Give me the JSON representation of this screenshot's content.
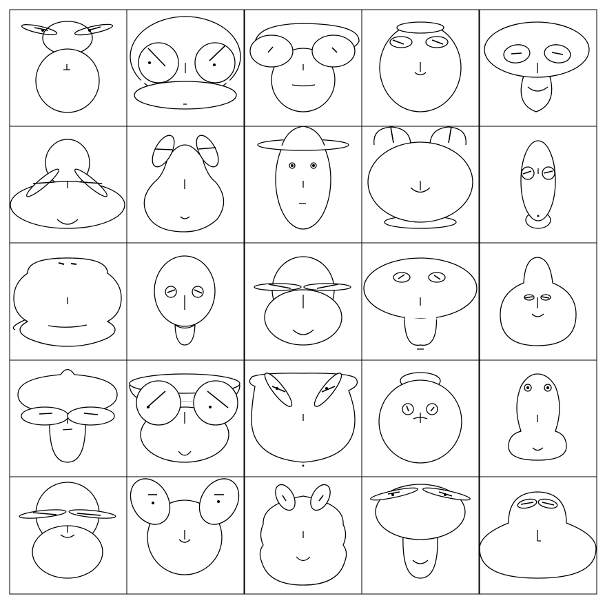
{
  "figure": {
    "type": "chernoff-faces-grid",
    "rows": 5,
    "columns": 5,
    "face_count": 25,
    "stroke_color": "#000000",
    "background_color": "#ffffff"
  }
}
